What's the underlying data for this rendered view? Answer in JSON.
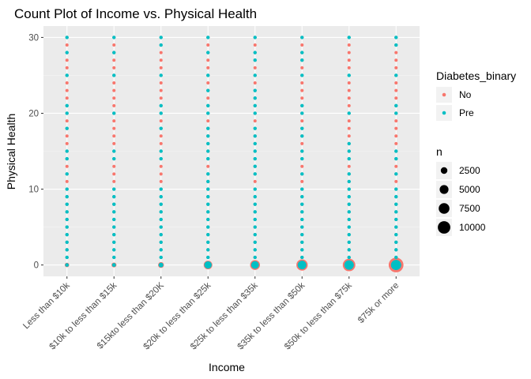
{
  "chart_data": {
    "type": "scatter",
    "title": "Count Plot of Income vs. Physical Health",
    "xlabel": "Income",
    "ylabel": "Physical Health",
    "categories": [
      "Less than $10k",
      "$10k to less than $15k",
      "$15kto less than $20K",
      "$20k to less than $25k",
      "$25k to less than $35k",
      "$35k to less than $50k",
      "$50k to less than $75k",
      "$75k or more"
    ],
    "y_ticks": [
      0,
      10,
      20,
      30
    ],
    "ylim": [
      -1.5,
      31.5
    ],
    "grid": true,
    "background": "#ebebeb",
    "legend_placement": "right",
    "color_legend": {
      "title": "Diabetes_binary",
      "entries": [
        {
          "label": "No",
          "color": "#f8766d"
        },
        {
          "label": "Pre",
          "color": "#00bfc4"
        }
      ]
    },
    "size_legend": {
      "title": "n",
      "values": [
        2500,
        5000,
        7500,
        10000
      ],
      "labels": [
        "2500",
        "5000",
        "7500",
        "10000"
      ]
    },
    "series": [
      {
        "name": "No",
        "color": "#f8766d",
        "points": [
          {
            "x": 0,
            "y": 0,
            "n": 1300
          },
          {
            "x": 1,
            "y": 0,
            "n": 1600
          },
          {
            "x": 2,
            "y": 0,
            "n": 2300
          },
          {
            "x": 3,
            "y": 0,
            "n": 5000
          },
          {
            "x": 4,
            "y": 0,
            "n": 6500
          },
          {
            "x": 5,
            "y": 0,
            "n": 8500
          },
          {
            "x": 6,
            "y": 0,
            "n": 10500
          },
          {
            "x": 7,
            "y": 0,
            "n": 14500
          }
        ],
        "y_values": [
          1,
          2,
          3,
          4,
          5,
          6,
          7,
          8,
          9,
          10,
          11,
          12,
          13,
          14,
          15,
          16,
          17,
          18,
          19,
          20,
          21,
          22,
          23,
          24,
          25,
          26,
          27,
          28,
          29,
          30
        ]
      },
      {
        "name": "Pre",
        "color": "#00bfc4",
        "points": [
          {
            "x": 0,
            "y": 0,
            "n": 900
          },
          {
            "x": 1,
            "y": 0,
            "n": 1000
          },
          {
            "x": 2,
            "y": 0,
            "n": 1500
          },
          {
            "x": 3,
            "y": 0,
            "n": 3600
          },
          {
            "x": 4,
            "y": 0,
            "n": 4000
          },
          {
            "x": 5,
            "y": 0,
            "n": 5000
          },
          {
            "x": 6,
            "y": 0,
            "n": 6000
          },
          {
            "x": 7,
            "y": 0,
            "n": 7000
          }
        ],
        "y_values_by_x": [
          [
            1,
            2,
            3,
            4,
            5,
            6,
            7,
            8,
            9,
            10,
            12,
            14,
            15,
            18,
            20,
            21,
            25,
            28,
            30
          ],
          [
            1,
            2,
            3,
            4,
            5,
            6,
            7,
            8,
            9,
            10,
            14,
            15,
            20,
            25,
            28,
            30
          ],
          [
            1,
            2,
            3,
            4,
            5,
            6,
            7,
            8,
            9,
            10,
            14,
            15,
            18,
            20,
            21,
            25,
            29,
            30
          ],
          [
            1,
            2,
            3,
            4,
            5,
            6,
            7,
            8,
            9,
            10,
            11,
            12,
            14,
            15,
            16,
            17,
            18,
            20,
            21,
            23,
            25,
            28,
            30
          ],
          [
            1,
            2,
            3,
            4,
            5,
            6,
            7,
            8,
            9,
            10,
            12,
            13,
            14,
            15,
            16,
            17,
            18,
            20,
            21,
            22,
            23,
            25,
            27,
            28,
            30
          ],
          [
            1,
            2,
            3,
            4,
            5,
            6,
            7,
            8,
            9,
            10,
            12,
            14,
            15,
            17,
            18,
            20,
            21,
            25,
            27,
            28,
            30
          ],
          [
            1,
            2,
            3,
            4,
            5,
            6,
            7,
            8,
            9,
            10,
            11,
            12,
            14,
            15,
            16,
            20,
            25,
            30
          ],
          [
            1,
            2,
            3,
            4,
            5,
            6,
            7,
            8,
            9,
            10,
            12,
            14,
            15,
            20,
            21,
            25,
            29,
            30
          ]
        ]
      }
    ]
  }
}
